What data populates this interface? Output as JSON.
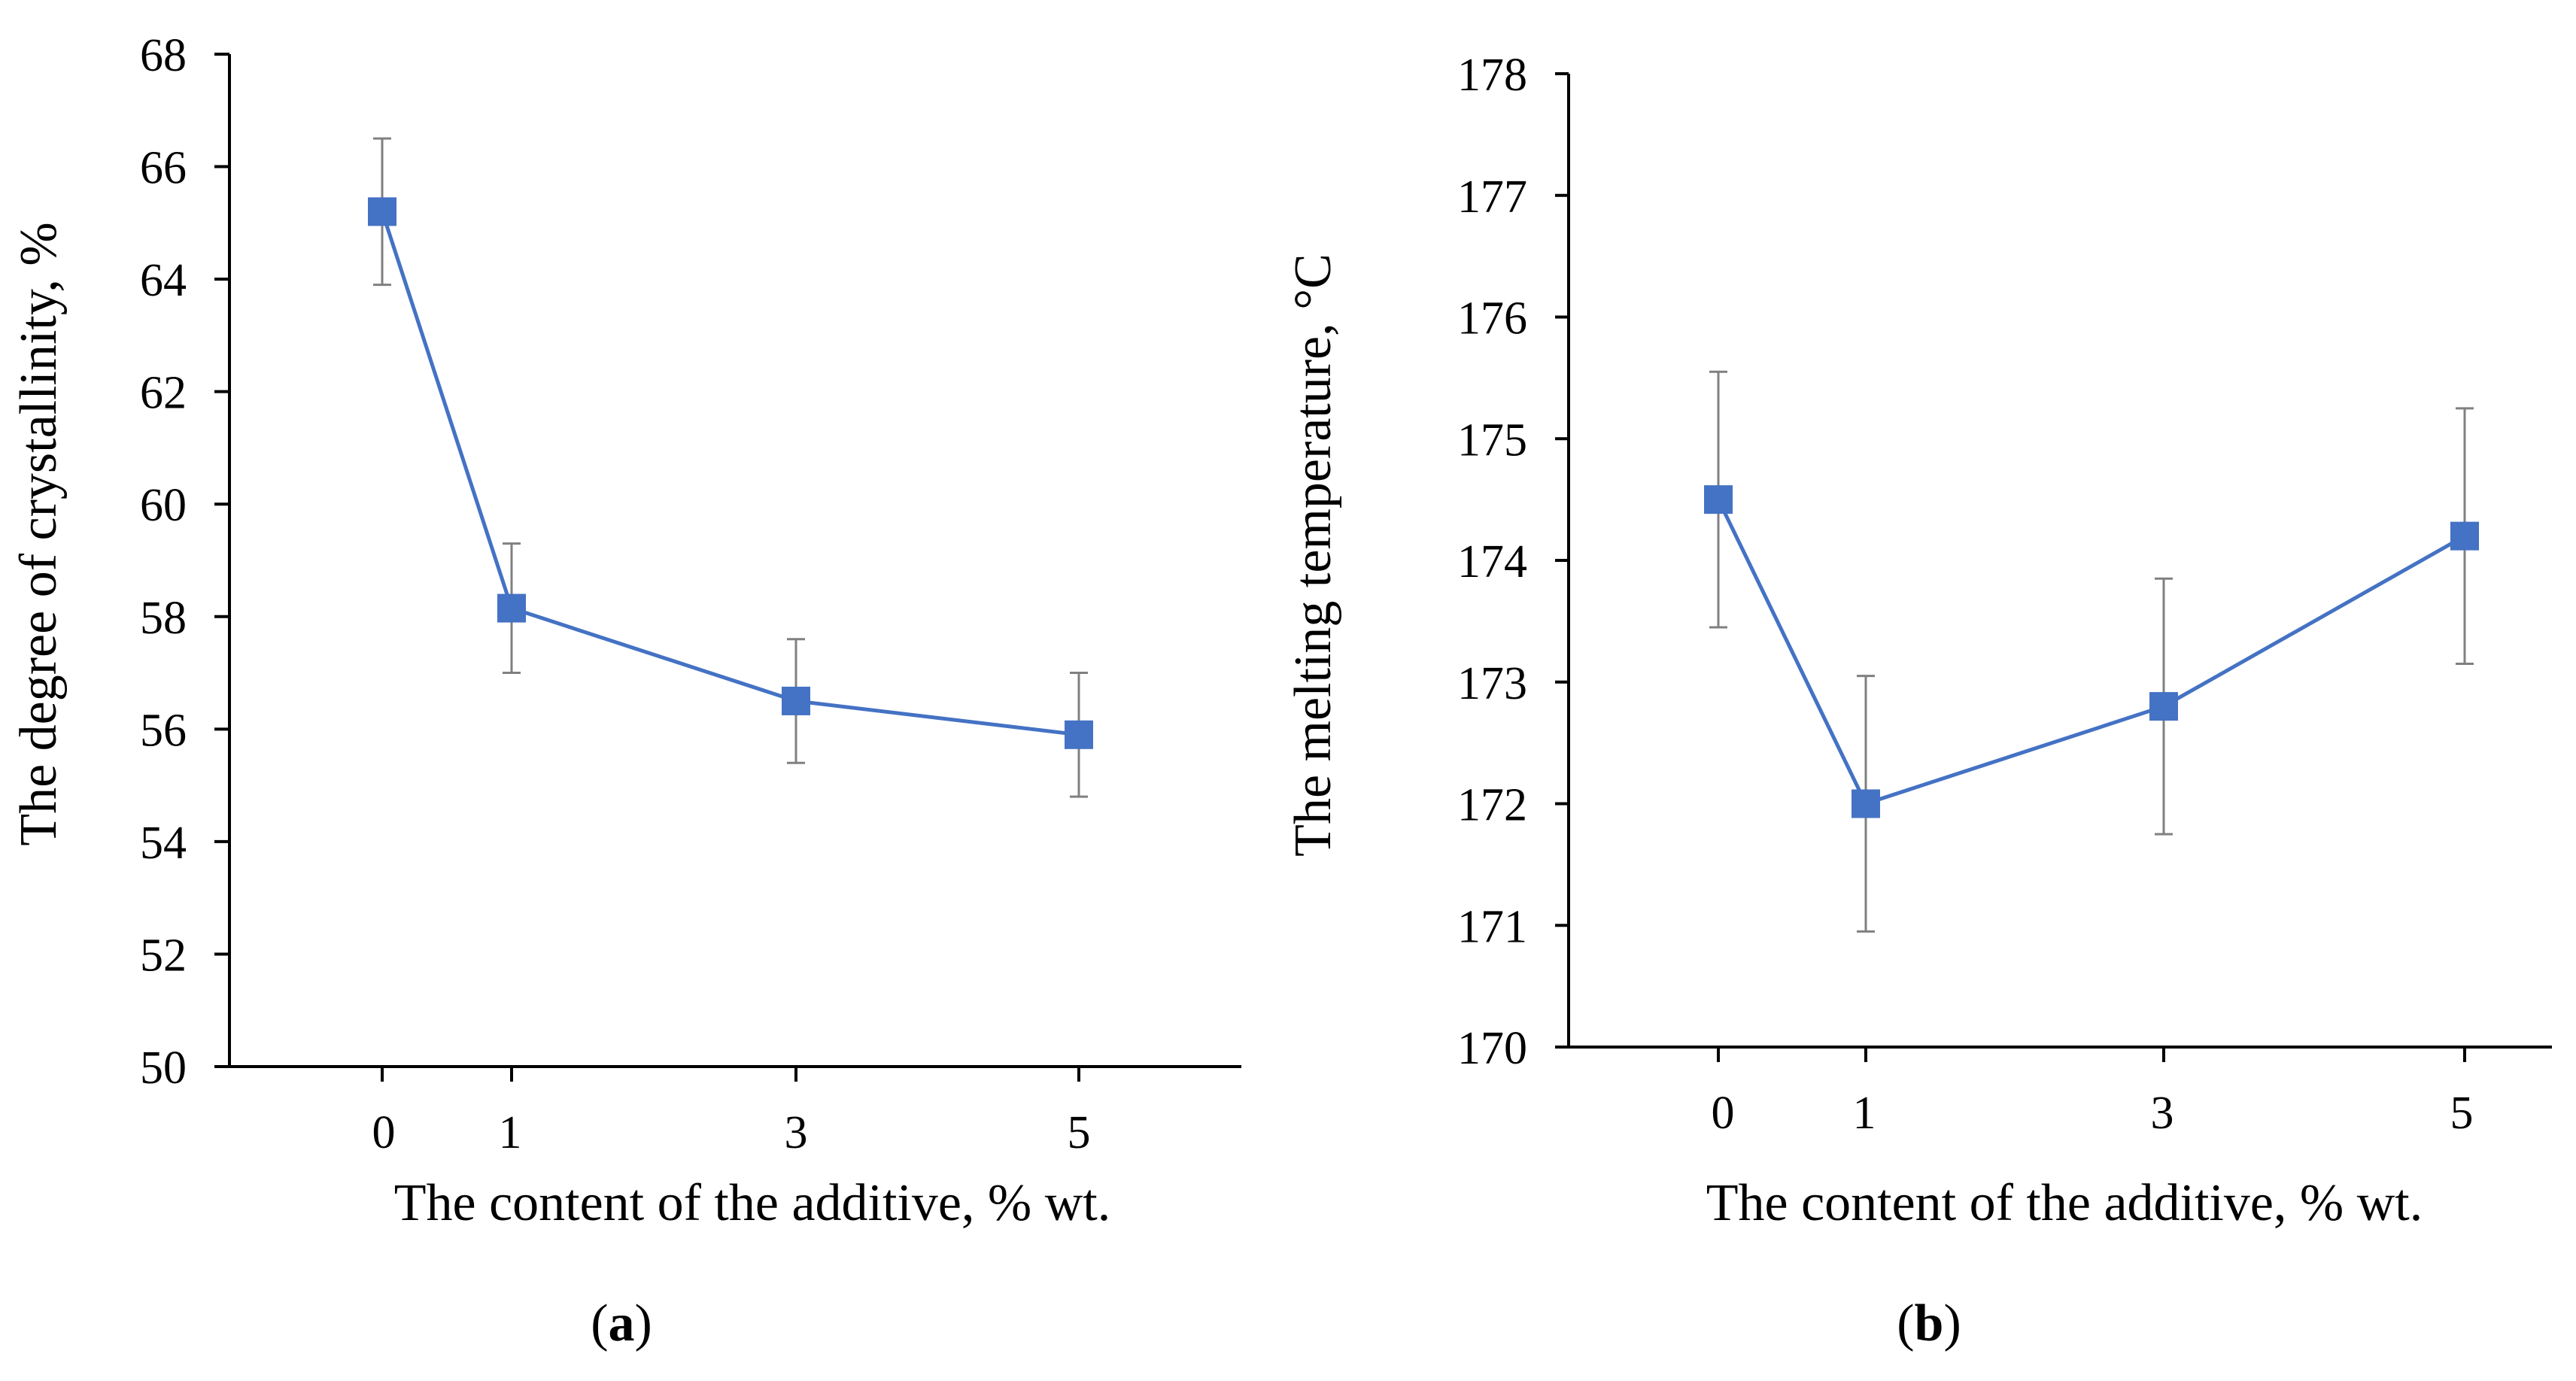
{
  "colors": {
    "series": "#4472C4",
    "axis": "#000000",
    "error_bar": "#808080"
  },
  "chart_data": [
    {
      "type": "line",
      "panel_label": {
        "open": "(",
        "letter": "a",
        "close": ")"
      },
      "xlabel": "The content of the additive, % wt.",
      "ylabel": "The degree of crystallinity, %",
      "x_ticks": [
        "0",
        "1",
        "3",
        "5"
      ],
      "x": [
        0,
        1,
        3,
        5
      ],
      "y_ticks": [
        "50",
        "52",
        "54",
        "56",
        "58",
        "60",
        "62",
        "64",
        "66",
        "68"
      ],
      "ylim": [
        50,
        68
      ],
      "series": [
        {
          "values": [
            65.2,
            58.15,
            56.5,
            55.9
          ],
          "errors": [
            1.3,
            1.15,
            1.1,
            1.1
          ]
        }
      ],
      "marker": "square",
      "legend": "none",
      "grid": false
    },
    {
      "type": "line",
      "panel_label": {
        "open": "(",
        "letter": "b",
        "close": ")"
      },
      "xlabel": "The content of the additive, % wt.",
      "ylabel": "The melting temperature, °C",
      "x_ticks": [
        "0",
        "1",
        "3",
        "5"
      ],
      "x": [
        0,
        1,
        3,
        5
      ],
      "y_ticks": [
        "170",
        "171",
        "172",
        "173",
        "174",
        "175",
        "176",
        "177",
        "178"
      ],
      "ylim": [
        170,
        178
      ],
      "series": [
        {
          "values": [
            174.5,
            172.0,
            172.8,
            174.2
          ],
          "errors": [
            1.05,
            1.05,
            1.05,
            1.05
          ]
        }
      ],
      "marker": "square",
      "legend": "none",
      "grid": false
    }
  ]
}
